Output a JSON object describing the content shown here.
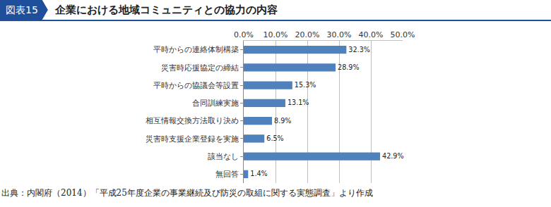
{
  "chart_data": {
    "type": "bar",
    "orientation": "horizontal",
    "figure_number": "図表15",
    "title": "企業における地域コミュニティとの協力の内容",
    "source": "出典：内閣府（2014）「平成25年度企業の事業継続及び防災の取組に関する実態調査」より作成",
    "categories": [
      "平時からの連絡体制構築",
      "災害時応援協定の締結",
      "平時からの協議会等設置",
      "合同訓練実施",
      "相互情報交換方法取り決め",
      "災害時支援企業登録を実施",
      "該当なし",
      "無回答"
    ],
    "values": [
      32.3,
      28.9,
      15.3,
      13.1,
      8.9,
      6.5,
      42.9,
      1.4
    ],
    "value_labels": [
      "32.3%",
      "28.9%",
      "15.3%",
      "13.1%",
      "8.9%",
      "6.5%",
      "42.9%",
      "1.4%"
    ],
    "data_labels": true,
    "color": "#4f81bd",
    "xlim": [
      0,
      50
    ],
    "xticks": [
      {
        "value": 0,
        "label": "0.0%"
      },
      {
        "value": 10,
        "label": "10.0%"
      },
      {
        "value": 20,
        "label": "20.0%"
      },
      {
        "value": 30,
        "label": "30.0%"
      },
      {
        "value": 40,
        "label": "40.0%"
      },
      {
        "value": 50,
        "label": "50.0%"
      }
    ],
    "grid": true
  }
}
